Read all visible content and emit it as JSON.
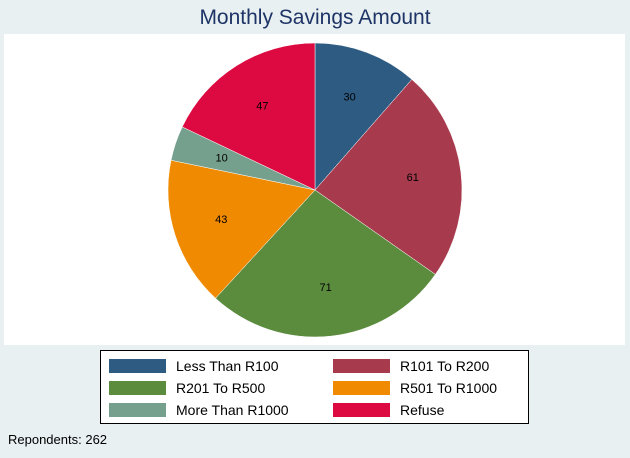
{
  "chart_data": {
    "type": "pie",
    "title": "Monthly Savings Amount",
    "slices": [
      {
        "label": "Less Than R100",
        "value": 30,
        "color": "#2e5b82"
      },
      {
        "label": "R101 To R200",
        "value": 61,
        "color": "#a83a4e"
      },
      {
        "label": "R201 To R500",
        "value": 71,
        "color": "#5b8c3e"
      },
      {
        "label": "R501 To R1000",
        "value": 43,
        "color": "#f08a00"
      },
      {
        "label": "More Than R1000",
        "value": 10,
        "color": "#76a08e"
      },
      {
        "label": "Refuse",
        "value": 47,
        "color": "#dc0a40"
      }
    ],
    "legend_placement": "bottom",
    "note": "Repondents: 262"
  }
}
